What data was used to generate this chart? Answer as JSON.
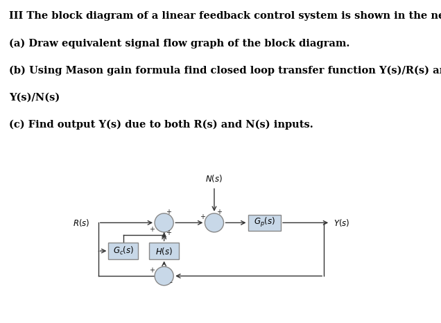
{
  "bg_color": "#ffffff",
  "divider_color": "#606060",
  "block_fill": "#c8d8e8",
  "block_edge": "#888888",
  "circle_fill": "#c8d8e8",
  "circle_edge": "#888888",
  "arrow_color": "#333333",
  "text_color": "#000000",
  "title_lines": [
    "III The block diagram of a linear feedback control system is shown in the next page.",
    "(a) Draw equivalent signal flow graph of the block diagram.",
    "(b) Using Mason gain formula find closed loop transfer function Y(s)/R(s) and",
    "Y(s)/N(s)",
    "(c) Find output Y(s) due to both R(s) and N(s) inputs."
  ],
  "title_fontsize": 10.5,
  "label_fontsize": 8.5
}
